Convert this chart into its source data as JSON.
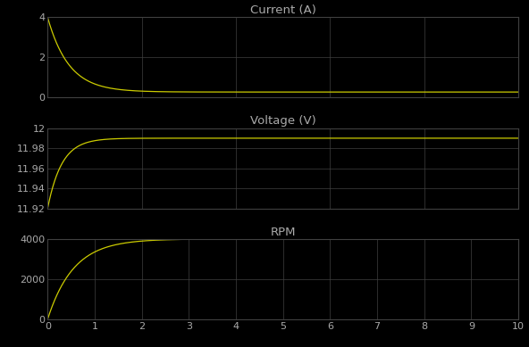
{
  "background_color": "#000000",
  "text_color": "#aaaaaa",
  "line_color": "#cccc00",
  "grid_color": "#404040",
  "title_fontsize": 9.5,
  "tick_fontsize": 8,
  "subplots": [
    {
      "title": "Current (A)",
      "ylim": [
        0,
        4
      ],
      "yticks": [
        0,
        2,
        4
      ],
      "steady_state": 0.28,
      "initial": 4.0,
      "tau": 0.45,
      "type": "decay"
    },
    {
      "title": "Voltage (V)",
      "ylim": [
        11.92,
        12.0
      ],
      "yticks": [
        11.92,
        11.94,
        11.96,
        11.98,
        12.0
      ],
      "steady_state": 11.99,
      "initial": 11.92,
      "tau": 0.3,
      "type": "rise"
    },
    {
      "title": "RPM",
      "ylim": [
        0,
        4000
      ],
      "yticks": [
        0,
        2000,
        4000
      ],
      "steady_state": 4000,
      "initial": 0,
      "tau": 0.55,
      "type": "rise"
    }
  ],
  "xlim": [
    0,
    10
  ],
  "xticks": [
    0,
    1,
    2,
    3,
    4,
    5,
    6,
    7,
    8,
    9,
    10
  ]
}
